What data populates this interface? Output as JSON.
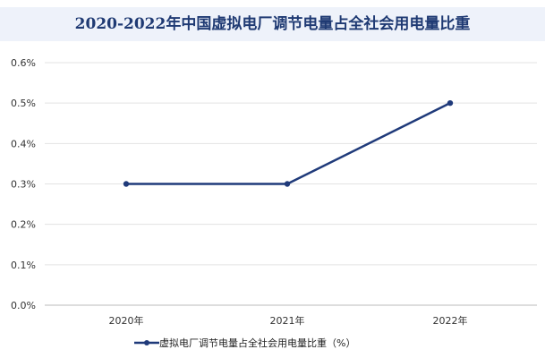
{
  "chart_data": {
    "type": "line",
    "title": "2020-2022年中国虚拟电厂调节电量占全社会用电量比重",
    "categories": [
      "2020年",
      "2021年",
      "2022年"
    ],
    "series": [
      {
        "name": "虚拟电厂调节电量占全社会用电量比重（%）",
        "values": [
          0.3,
          0.3,
          0.5
        ],
        "color": "#1f3a7a"
      }
    ],
    "y_ticks": [
      "0.0%",
      "0.1%",
      "0.2%",
      "0.3%",
      "0.4%",
      "0.5%",
      "0.6%"
    ],
    "ylim": [
      0,
      0.6
    ],
    "xlabel": "",
    "ylabel": "",
    "grid": "horizontal",
    "legend_position": "bottom"
  }
}
